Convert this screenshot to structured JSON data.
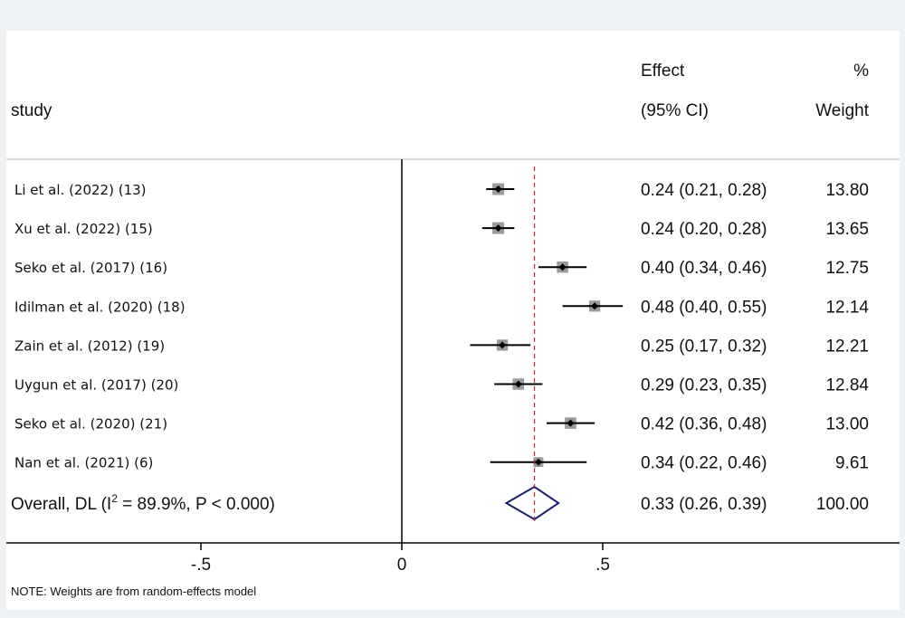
{
  "header": {
    "study_label": "study",
    "effect_label": "Effect",
    "ci_label": "(95% CI)",
    "pct_label": "%",
    "weight_label": "Weight"
  },
  "note": "NOTE: Weights are from random-effects model",
  "colors": {
    "background": "#eef2f5",
    "panel": "#ffffff",
    "refline": "#b03030",
    "diamond": "#1a1f6e",
    "marker_box": "#9a9a9a",
    "axis": "#000000"
  },
  "chart_data": {
    "type": "forest",
    "xlim": [
      -1.0,
      1.2
    ],
    "x_ticks": [
      {
        "value": -0.5,
        "label": "-.5"
      },
      {
        "value": 0,
        "label": "0"
      },
      {
        "value": 0.5,
        "label": ".5"
      }
    ],
    "null_line": 0,
    "pooled_line": 0.33,
    "studies": [
      {
        "label": "Li et al. (2022) (13)",
        "es": 0.24,
        "lo": 0.21,
        "hi": 0.28,
        "es_text": "0.24 (0.21, 0.28)",
        "weight": 13.8,
        "weight_text": "13.80"
      },
      {
        "label": "Xu et al. (2022) (15)",
        "es": 0.24,
        "lo": 0.2,
        "hi": 0.28,
        "es_text": "0.24 (0.20, 0.28)",
        "weight": 13.65,
        "weight_text": "13.65"
      },
      {
        "label": "Seko et al. (2017) (16)",
        "es": 0.4,
        "lo": 0.34,
        "hi": 0.46,
        "es_text": "0.40 (0.34, 0.46)",
        "weight": 12.75,
        "weight_text": "12.75"
      },
      {
        "label": "Idilman et al.  (2020) (18)",
        "es": 0.48,
        "lo": 0.4,
        "hi": 0.55,
        "es_text": "0.48 (0.40, 0.55)",
        "weight": 12.14,
        "weight_text": "12.14"
      },
      {
        "label": "Zain et al. (2012) (19)",
        "es": 0.25,
        "lo": 0.17,
        "hi": 0.32,
        "es_text": "0.25 (0.17, 0.32)",
        "weight": 12.21,
        "weight_text": "12.21"
      },
      {
        "label": "Uygun et al. (2017) (20)",
        "es": 0.29,
        "lo": 0.23,
        "hi": 0.35,
        "es_text": "0.29 (0.23, 0.35)",
        "weight": 12.84,
        "weight_text": "12.84"
      },
      {
        "label": "Seko et al. (2020) (21)",
        "es": 0.42,
        "lo": 0.36,
        "hi": 0.48,
        "es_text": "0.42 (0.36, 0.48)",
        "weight": 13.0,
        "weight_text": "13.00"
      },
      {
        "label": "Nan et al. (2021) (6)",
        "es": 0.34,
        "lo": 0.22,
        "hi": 0.46,
        "es_text": "0.34 (0.22, 0.46)",
        "weight": 9.61,
        "weight_text": "9.61"
      }
    ],
    "overall": {
      "label_main": "Overall, DL (I",
      "label_sup": "2",
      "label_rest": " = 89.9%, P < 0.000)",
      "es": 0.33,
      "lo": 0.26,
      "hi": 0.39,
      "es_text": "0.33 (0.26, 0.39)",
      "weight_text": "100.00"
    }
  }
}
